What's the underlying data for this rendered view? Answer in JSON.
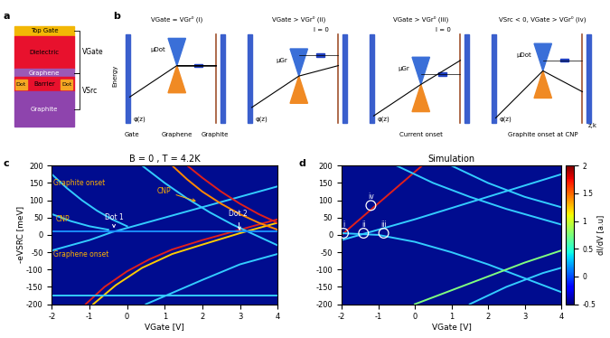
{
  "panel_labels": [
    "a",
    "b",
    "c",
    "d"
  ],
  "layer_stack": {
    "layers": [
      "Top Gate",
      "Dielectric",
      "Graphene",
      "Barrier",
      "Graphite"
    ],
    "dot_label": "Dot",
    "voltages": [
      "VGate",
      "VSrc"
    ]
  },
  "band_diagrams": {
    "axis_labels": [
      "Energy",
      "z,k"
    ],
    "panels": [
      {
        "title": "VGate = VGr⁰ (i)",
        "mu": "μDot",
        "phi": "φ(z)",
        "bottom": [
          "Gate",
          "Graphene",
          "Graphite"
        ]
      },
      {
        "title": "VGate > VGr⁰ (ii)",
        "mu": "μGr",
        "phi": "φ(z)",
        "current": "I = 0",
        "bottom": []
      },
      {
        "title": "VGate > VGr⁰ (iii)",
        "mu": "μGr",
        "phi": "φ(z)",
        "current": "I = 0",
        "bottom": [
          "Current onset"
        ]
      },
      {
        "title": "VSrc < 0, VGate > VGr⁰ (iv)",
        "mu": "μDot",
        "phi": "φ(z)",
        "bottom": [
          "Graphite onset at CNP"
        ]
      }
    ]
  },
  "chart_data": [
    {
      "type": "line",
      "title": "B = 0 , T = 4.2K",
      "x_label": "VGate [V]",
      "y_label": "-eVSRC [meV]",
      "xlim": [
        -2,
        4
      ],
      "ylim": [
        -200,
        200
      ],
      "xticks": [
        -2,
        -1,
        0,
        1,
        2,
        3,
        4
      ],
      "yticks": [
        -200,
        -150,
        -100,
        -50,
        0,
        50,
        100,
        150,
        200
      ],
      "series": [
        {
          "color": "#33ccff",
          "x": [
            -2,
            -1,
            -0.4,
            0.5,
            1.5,
            2.5,
            3.5,
            4
          ],
          "y": [
            -45,
            -15,
            8,
            35,
            65,
            95,
            125,
            140
          ]
        },
        {
          "color": "#33ccff",
          "x": [
            -2,
            -1.6,
            -1.2,
            -0.8,
            -0.4,
            0
          ],
          "y": [
            175,
            135,
            100,
            70,
            45,
            25
          ]
        },
        {
          "color": "#33ccff",
          "x": [
            -2,
            -1.5,
            -1,
            -0.5
          ],
          "y": [
            60,
            40,
            25,
            15
          ]
        },
        {
          "color": "#e0201b",
          "x": [
            -1.1,
            -0.6,
            0,
            0.6,
            1.2,
            2,
            3,
            4
          ],
          "y": [
            -200,
            -150,
            -105,
            -70,
            -42,
            -15,
            15,
            45
          ]
        },
        {
          "color": "#ffcc00",
          "x": [
            -0.9,
            -0.3,
            0.4,
            1.2,
            2,
            3,
            4
          ],
          "y": [
            -200,
            -145,
            -95,
            -55,
            -28,
            5,
            35
          ]
        },
        {
          "color": "#ff8800",
          "x": [
            1.2,
            1.6,
            2,
            2.5,
            3,
            3.5,
            4
          ],
          "y": [
            200,
            160,
            125,
            90,
            60,
            35,
            15
          ]
        },
        {
          "color": "#e0201b",
          "x": [
            1.6,
            2,
            2.5,
            3,
            3.5,
            4
          ],
          "y": [
            200,
            165,
            125,
            90,
            60,
            35
          ]
        },
        {
          "color": "#33ccff",
          "x": [
            0.4,
            1,
            1.6,
            2.2,
            2.8,
            3.4,
            4
          ],
          "y": [
            200,
            150,
            105,
            65,
            30,
            0,
            -30
          ]
        },
        {
          "color": "#33ccff",
          "x": [
            -2,
            4
          ],
          "y": [
            -175,
            -175
          ]
        },
        {
          "color": "#1a8cff",
          "x": [
            -2,
            4
          ],
          "y": [
            10,
            10
          ]
        },
        {
          "color": "#33ccff",
          "x": [
            0.5,
            2,
            3,
            4
          ],
          "y": [
            -200,
            -130,
            -85,
            -55
          ]
        }
      ],
      "annotations": [
        {
          "text": "Graphite onset",
          "x": -1.95,
          "y": 150,
          "color": "#ffb000"
        },
        {
          "text": "CNP",
          "x": -1.9,
          "y": 45,
          "color": "#ffb000"
        },
        {
          "text": "Graphene onset",
          "x": -1.95,
          "y": -55,
          "color": "#ffb000"
        },
        {
          "text": "Dot 1",
          "x": -0.6,
          "y": 45,
          "color": "#ffffff",
          "arrow_x": -0.35,
          "arrow_y": 12
        },
        {
          "text": "Dot 2",
          "x": 2.7,
          "y": 55,
          "color": "#ffffff",
          "arrow_x": 3.0,
          "arrow_y": 5
        },
        {
          "text": "CNP",
          "x": 0.8,
          "y": 120,
          "color": "#ffb000",
          "arrow_x": 1.9,
          "arrow_y": 95
        }
      ]
    },
    {
      "type": "line",
      "title": "Simulation",
      "x_label": "VGate [V]",
      "xlim": [
        -2,
        4
      ],
      "ylim": [
        -200,
        200
      ],
      "xticks": [
        -2,
        -1,
        0,
        1,
        2,
        3,
        4
      ],
      "yticks": [
        -200,
        -150,
        -100,
        -50,
        0,
        50,
        100,
        150,
        200
      ],
      "series": [
        {
          "color": "#e0201b",
          "x": [
            -2,
            0.2
          ],
          "y": [
            0,
            200
          ]
        },
        {
          "color": "#33ccff",
          "x": [
            -2,
            0,
            2,
            4
          ],
          "y": [
            -15,
            45,
            110,
            175
          ]
        },
        {
          "color": "#33ccff",
          "x": [
            -2,
            -1,
            0,
            1,
            2,
            3,
            4
          ],
          "y": [
            5,
            0,
            -20,
            -50,
            -85,
            -125,
            -165
          ]
        },
        {
          "color": "#33ccff",
          "x": [
            -0.5,
            0.5,
            1.5,
            2.5,
            3.5,
            4
          ],
          "y": [
            200,
            150,
            110,
            75,
            45,
            30
          ]
        },
        {
          "color": "#33ccff",
          "x": [
            1,
            2,
            3,
            4
          ],
          "y": [
            200,
            150,
            110,
            80
          ]
        },
        {
          "color": "#7fff7f",
          "x": [
            0,
            1,
            2,
            3,
            4
          ],
          "y": [
            -200,
            -160,
            -120,
            -80,
            -45
          ]
        },
        {
          "color": "#33ccff",
          "x": [
            1.5,
            2.5,
            3.5,
            4
          ],
          "y": [
            -200,
            -150,
            -110,
            -95
          ]
        }
      ],
      "points": [
        {
          "label": "i",
          "x": -1.95,
          "y": 5
        },
        {
          "label": "ii",
          "x": -1.4,
          "y": 5
        },
        {
          "label": "iii",
          "x": -0.85,
          "y": 5
        },
        {
          "label": "iv",
          "x": -1.2,
          "y": 85
        }
      ],
      "colorbar": {
        "label": "dI/dV [a.u]",
        "range": [
          -0.5,
          2
        ],
        "ticks": [
          -0.5,
          0,
          0.5,
          1,
          1.5,
          2
        ]
      }
    }
  ]
}
